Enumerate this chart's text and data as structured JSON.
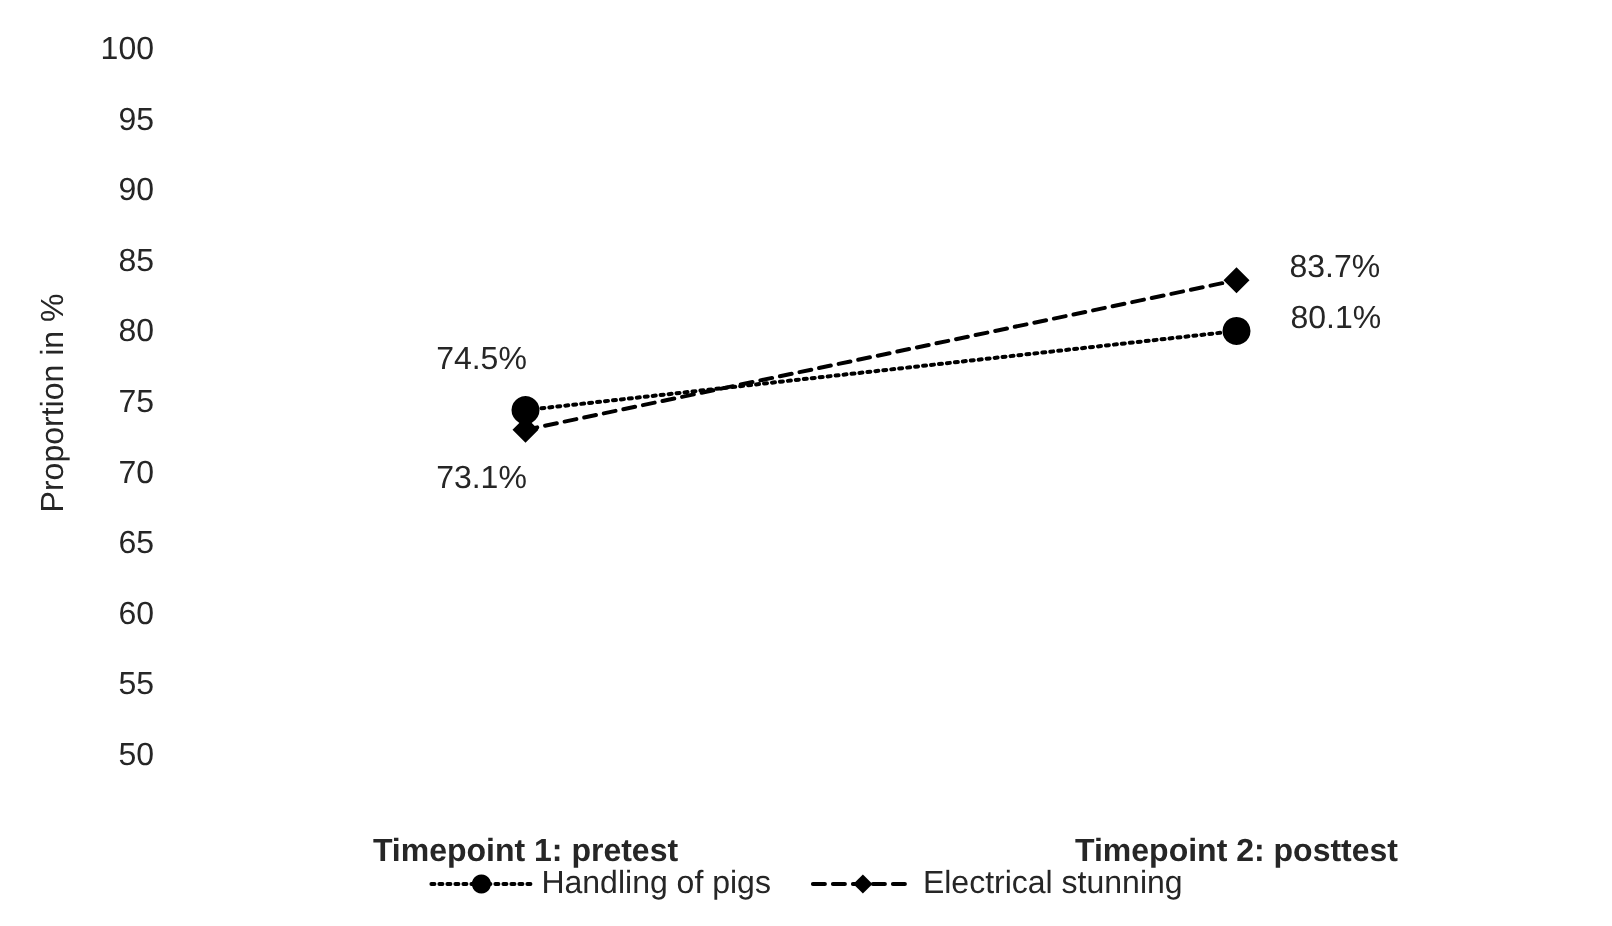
{
  "chart_data": {
    "type": "line",
    "ylabel": "Proportion in %",
    "categories": [
      "Timepoint 1: pretest",
      "Timepoint 2: posttest"
    ],
    "series": [
      {
        "name": "Handling of pigs",
        "color": "#000000",
        "values": [
          74.5,
          80.1
        ],
        "value_labels": [
          "74.5%",
          "80.1%"
        ],
        "marker": "circle",
        "line_style": "dotted"
      },
      {
        "name": "Electrical stunning",
        "color": "#000000",
        "values": [
          73.1,
          83.7
        ],
        "value_labels": [
          "73.1%",
          "83.7%"
        ],
        "marker": "diamond",
        "line_style": "dashed"
      }
    ],
    "ylim": [
      50,
      100
    ],
    "yticks": [
      50,
      55,
      60,
      65,
      70,
      75,
      80,
      85,
      90,
      95,
      100
    ],
    "grid": false,
    "legend": "bottom"
  }
}
